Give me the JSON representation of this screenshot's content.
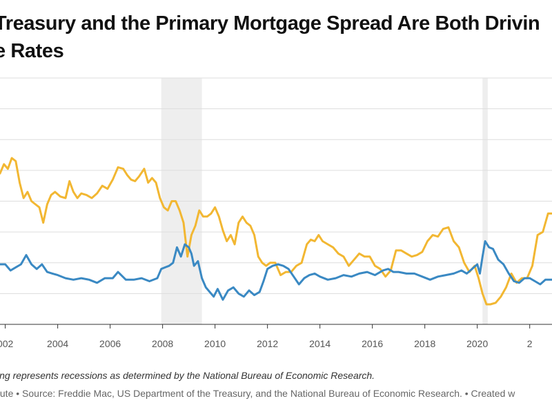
{
  "chart_data": {
    "type": "line",
    "title": "Treasury and the Primary Mortgage Spread Are Both Drivin\ne Rates",
    "note": "ing represents recessions as determined by the National Bureau of Economic Research.",
    "source": "tute • Source: Freddie Mac, US Department of the Treasury, and the National Bureau of Economic Research. • Created w",
    "x_ticks": [
      "002",
      "2004",
      "2006",
      "2008",
      "2010",
      "2012",
      "2014",
      "2016",
      "2018",
      "2020",
      "2"
    ],
    "xlim": [
      2001.8,
      2022.85
    ],
    "ylim": [
      0,
      8
    ],
    "grid": true,
    "recessions": [
      [
        2007.95,
        2009.5
      ],
      [
        2020.2,
        2020.4
      ]
    ],
    "colors": {
      "yellow_series": "#f2b732",
      "blue_series": "#3a89c3",
      "recession_shading": "#eeeeee",
      "grid": "#dddddd"
    },
    "series": [
      {
        "color": "#f2b732",
        "x": [
          2001.8,
          2001.95,
          2002.1,
          2002.25,
          2002.4,
          2002.55,
          2002.7,
          2002.85,
          2003.0,
          2003.15,
          2003.3,
          2003.45,
          2003.6,
          2003.75,
          2003.9,
          2004.1,
          2004.3,
          2004.45,
          2004.6,
          2004.75,
          2004.9,
          2005.1,
          2005.3,
          2005.5,
          2005.7,
          2005.9,
          2006.1,
          2006.3,
          2006.5,
          2006.65,
          2006.8,
          2006.95,
          2007.1,
          2007.3,
          2007.45,
          2007.6,
          2007.75,
          2007.9,
          2008.05,
          2008.2,
          2008.35,
          2008.5,
          2008.65,
          2008.8,
          2008.95,
          2009.1,
          2009.25,
          2009.4,
          2009.55,
          2009.7,
          2009.85,
          2010.0,
          2010.15,
          2010.3,
          2010.45,
          2010.6,
          2010.75,
          2010.9,
          2011.05,
          2011.2,
          2011.35,
          2011.5,
          2011.65,
          2011.8,
          2011.95,
          2012.1,
          2012.3,
          2012.5,
          2012.7,
          2012.9,
          2013.1,
          2013.3,
          2013.5,
          2013.65,
          2013.8,
          2013.95,
          2014.1,
          2014.3,
          2014.5,
          2014.7,
          2014.9,
          2015.1,
          2015.3,
          2015.5,
          2015.7,
          2015.9,
          2016.1,
          2016.3,
          2016.5,
          2016.7,
          2016.9,
          2017.1,
          2017.3,
          2017.5,
          2017.7,
          2017.9,
          2018.1,
          2018.3,
          2018.5,
          2018.7,
          2018.9,
          2019.1,
          2019.3,
          2019.5,
          2019.7,
          2019.9,
          2020.05,
          2020.2,
          2020.35,
          2020.5,
          2020.7,
          2020.9,
          2021.1,
          2021.3,
          2021.5,
          2021.7,
          2021.9,
          2022.1,
          2022.3,
          2022.5,
          2022.7,
          2022.85
        ],
        "y": [
          4.9,
          5.2,
          5.05,
          5.4,
          5.3,
          4.6,
          4.1,
          4.3,
          4.0,
          3.9,
          3.8,
          3.3,
          3.9,
          4.2,
          4.3,
          4.15,
          4.1,
          4.65,
          4.3,
          4.1,
          4.25,
          4.2,
          4.1,
          4.25,
          4.5,
          4.4,
          4.7,
          5.1,
          5.05,
          4.85,
          4.7,
          4.65,
          4.8,
          5.05,
          4.6,
          4.75,
          4.6,
          4.1,
          3.8,
          3.7,
          4.0,
          4.0,
          3.7,
          3.3,
          2.2,
          2.9,
          3.2,
          3.7,
          3.5,
          3.5,
          3.6,
          3.8,
          3.5,
          3.05,
          2.7,
          2.9,
          2.6,
          3.3,
          3.5,
          3.3,
          3.2,
          2.9,
          2.2,
          2.0,
          1.9,
          2.0,
          2.0,
          1.6,
          1.7,
          1.7,
          1.9,
          2.0,
          2.6,
          2.75,
          2.7,
          2.9,
          2.7,
          2.6,
          2.5,
          2.3,
          2.2,
          1.9,
          2.1,
          2.3,
          2.2,
          2.2,
          1.9,
          1.8,
          1.55,
          1.75,
          2.4,
          2.4,
          2.3,
          2.2,
          2.25,
          2.35,
          2.7,
          2.9,
          2.85,
          3.1,
          3.15,
          2.7,
          2.5,
          2.0,
          1.7,
          1.9,
          1.5,
          1.0,
          0.65,
          0.65,
          0.7,
          0.9,
          1.2,
          1.65,
          1.35,
          1.5,
          1.5,
          1.9,
          2.9,
          3.0,
          3.6,
          3.6
        ]
      },
      {
        "color": "#3a89c3",
        "x": [
          2001.8,
          2002.0,
          2002.2,
          2002.4,
          2002.6,
          2002.8,
          2003.0,
          2003.2,
          2003.4,
          2003.6,
          2003.8,
          2004.0,
          2004.3,
          2004.6,
          2004.9,
          2005.2,
          2005.5,
          2005.8,
          2006.1,
          2006.3,
          2006.6,
          2006.9,
          2007.2,
          2007.5,
          2007.8,
          2007.95,
          2008.1,
          2008.25,
          2008.4,
          2008.55,
          2008.7,
          2008.85,
          2009.0,
          2009.1,
          2009.2,
          2009.35,
          2009.5,
          2009.65,
          2009.8,
          2009.95,
          2010.1,
          2010.3,
          2010.5,
          2010.7,
          2010.9,
          2011.1,
          2011.3,
          2011.5,
          2011.7,
          2011.85,
          2012.0,
          2012.2,
          2012.4,
          2012.6,
          2012.8,
          2013.0,
          2013.2,
          2013.4,
          2013.6,
          2013.8,
          2014.0,
          2014.3,
          2014.6,
          2014.9,
          2015.2,
          2015.5,
          2015.8,
          2016.1,
          2016.4,
          2016.6,
          2016.8,
          2017.0,
          2017.3,
          2017.6,
          2017.9,
          2018.2,
          2018.5,
          2018.8,
          2019.1,
          2019.4,
          2019.6,
          2019.8,
          2020.0,
          2020.1,
          2020.2,
          2020.3,
          2020.45,
          2020.6,
          2020.8,
          2021.0,
          2021.2,
          2021.4,
          2021.6,
          2021.8,
          2022.0,
          2022.2,
          2022.4,
          2022.6,
          2022.85
        ],
        "y": [
          1.95,
          1.95,
          1.75,
          1.85,
          1.95,
          2.25,
          1.95,
          1.8,
          1.95,
          1.7,
          1.65,
          1.6,
          1.5,
          1.45,
          1.5,
          1.45,
          1.35,
          1.5,
          1.5,
          1.7,
          1.45,
          1.45,
          1.5,
          1.4,
          1.5,
          1.8,
          1.85,
          1.9,
          2.0,
          2.5,
          2.2,
          2.6,
          2.5,
          2.3,
          1.9,
          2.05,
          1.5,
          1.2,
          1.05,
          0.9,
          1.15,
          0.8,
          1.1,
          1.2,
          1.0,
          0.9,
          1.1,
          0.95,
          1.05,
          1.4,
          1.8,
          1.9,
          1.95,
          1.9,
          1.8,
          1.55,
          1.3,
          1.5,
          1.6,
          1.65,
          1.55,
          1.45,
          1.5,
          1.6,
          1.55,
          1.65,
          1.7,
          1.6,
          1.75,
          1.8,
          1.7,
          1.7,
          1.65,
          1.65,
          1.55,
          1.45,
          1.55,
          1.6,
          1.65,
          1.75,
          1.65,
          1.8,
          1.95,
          1.65,
          2.2,
          2.7,
          2.5,
          2.45,
          2.1,
          1.95,
          1.65,
          1.4,
          1.35,
          1.5,
          1.5,
          1.4,
          1.3,
          1.45,
          1.45
        ]
      }
    ]
  }
}
